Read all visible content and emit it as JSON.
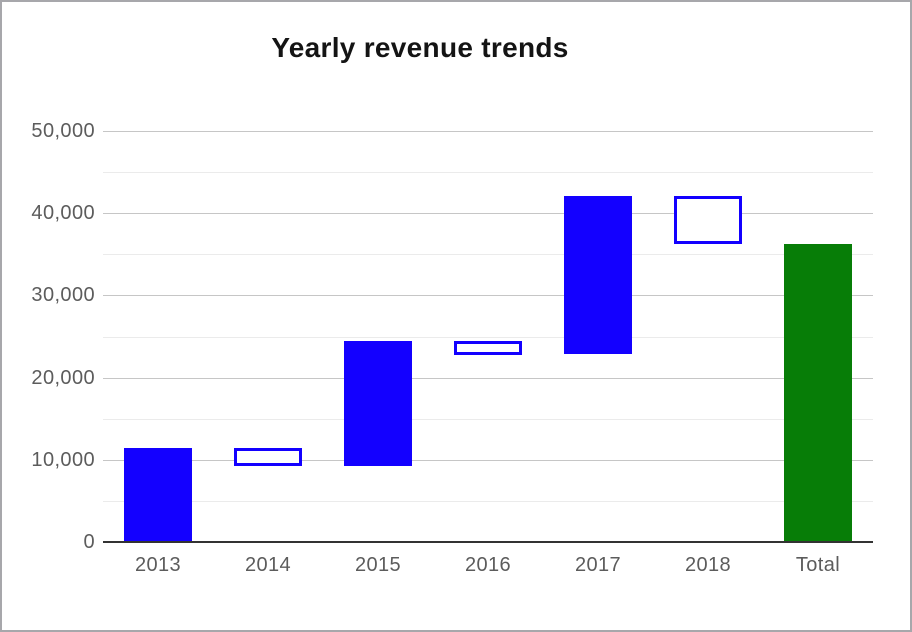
{
  "chart_data": {
    "type": "bar",
    "subtype": "waterfall",
    "title": "Yearly revenue trends",
    "xlabel": "",
    "ylabel": "",
    "categories": [
      "2013",
      "2014",
      "2015",
      "2016",
      "2017",
      "2018",
      "Total"
    ],
    "bars": [
      {
        "category": "2013",
        "start": 0,
        "end": 11400,
        "delta": 11400,
        "kind": "increase"
      },
      {
        "category": "2014",
        "start": 11400,
        "end": 9200,
        "delta": -2200,
        "kind": "decrease"
      },
      {
        "category": "2015",
        "start": 9200,
        "end": 24500,
        "delta": 15300,
        "kind": "increase"
      },
      {
        "category": "2016",
        "start": 24500,
        "end": 22800,
        "delta": -1700,
        "kind": "decrease"
      },
      {
        "category": "2017",
        "start": 22800,
        "end": 42100,
        "delta": 19300,
        "kind": "increase"
      },
      {
        "category": "2018",
        "start": 42100,
        "end": 36300,
        "delta": -5800,
        "kind": "decrease"
      },
      {
        "category": "Total",
        "start": 0,
        "end": 36300,
        "delta": 36300,
        "kind": "total"
      }
    ],
    "y_axis": {
      "min": 0,
      "max": 50000,
      "ticks": [
        {
          "value": 0,
          "label": "0"
        },
        {
          "value": 10000,
          "label": "10,000"
        },
        {
          "value": 20000,
          "label": "20,000"
        },
        {
          "value": 30000,
          "label": "30,000"
        },
        {
          "value": 40000,
          "label": "40,000"
        },
        {
          "value": 50000,
          "label": "50,000"
        }
      ],
      "minor_tick_values": [
        5000,
        15000,
        25000,
        35000,
        45000
      ]
    },
    "grid": true,
    "legend": "none",
    "styles": {
      "increase_fill": "#1300ff",
      "decrease_fill": "#ffffff",
      "decrease_border": "#1300ff",
      "total_fill": "#077d07",
      "major_grid": "#c6c6c6",
      "minor_grid": "#ebebeb",
      "axis_line": "#333333",
      "label_color": "#5c5c5c",
      "title_color": "#141414",
      "frame_border": "#a7a7ab",
      "background": "#ffffff"
    }
  }
}
